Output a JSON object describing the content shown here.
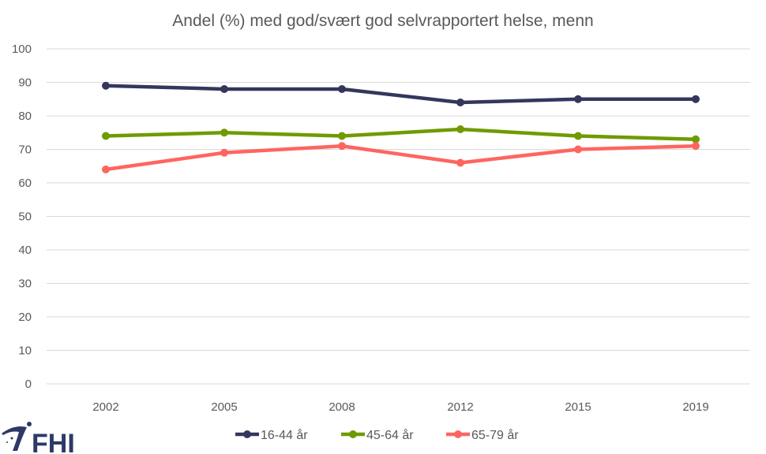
{
  "chart_data": {
    "type": "line",
    "title": "Andel (%) med god/svært god selvrapportert helse, menn",
    "categories": [
      "2002",
      "2005",
      "2008",
      "2012",
      "2015",
      "2019"
    ],
    "ylim": [
      0,
      100
    ],
    "yticks": [
      0,
      10,
      20,
      30,
      40,
      50,
      60,
      70,
      80,
      90,
      100
    ],
    "grid": true,
    "legend_position": "bottom",
    "series": [
      {
        "name": "16-44 år",
        "color": "#34375C",
        "values": [
          89,
          88,
          88,
          84,
          85,
          85
        ]
      },
      {
        "name": "45-64 år",
        "color": "#6F9A00",
        "values": [
          74,
          75,
          74,
          76,
          74,
          73
        ]
      },
      {
        "name": "65-79 år",
        "color": "#FF6560",
        "values": [
          64,
          69,
          71,
          66,
          70,
          71
        ]
      }
    ]
  },
  "logo": {
    "text": "FHI",
    "color": "#2D3A66"
  }
}
